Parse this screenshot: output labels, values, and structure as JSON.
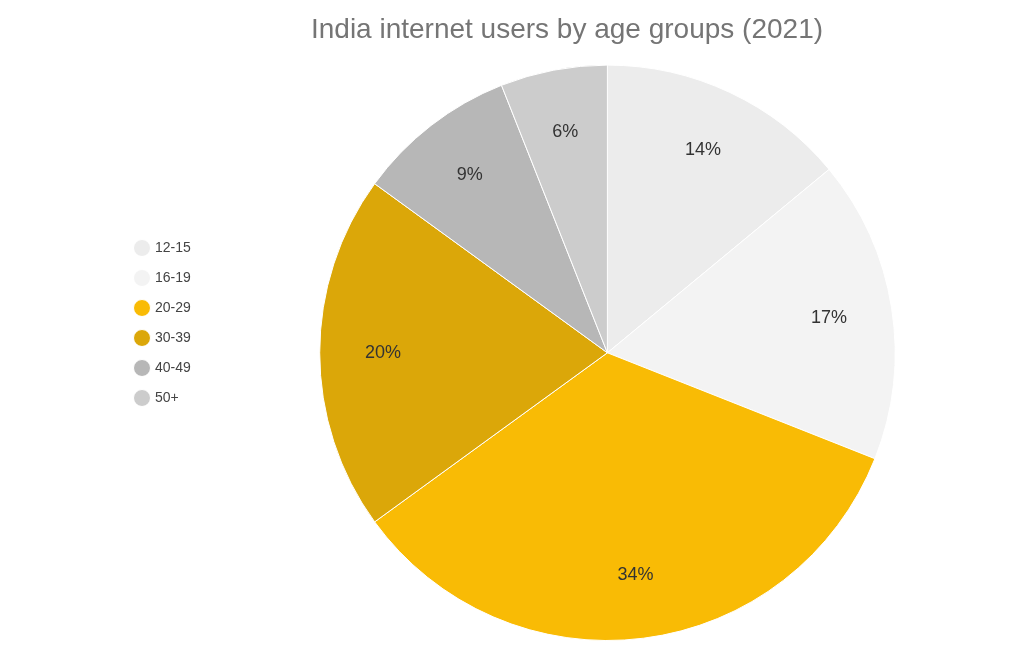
{
  "chart_data": {
    "type": "pie",
    "title": "India internet users by age groups (2021)",
    "categories": [
      "12-15",
      "16-19",
      "20-29",
      "30-39",
      "40-49",
      "50+"
    ],
    "values": [
      14,
      17,
      34,
      20,
      9,
      6
    ],
    "value_labels": [
      "14%",
      "17%",
      "34%",
      "20%",
      "9%",
      "6%"
    ],
    "colors": [
      "#ececec",
      "#f3f3f3",
      "#f9bb05",
      "#dba709",
      "#b7b7b7",
      "#cccccc"
    ],
    "data_labels": true,
    "legend": "left"
  }
}
